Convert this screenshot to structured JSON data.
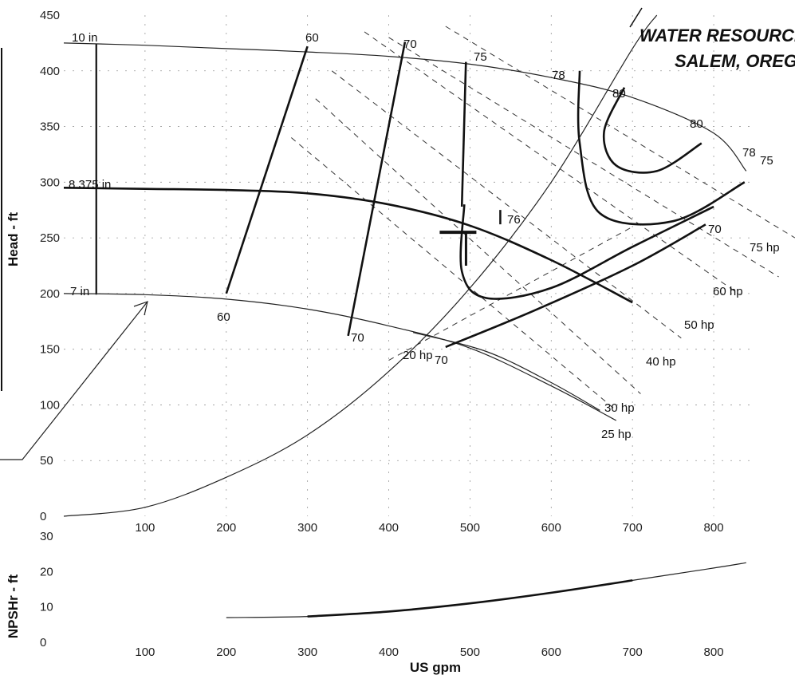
{
  "stamp": {
    "line1": "WATER RESOURCE",
    "line2": "SALEM, OREG"
  },
  "chart_data": [
    {
      "type": "line",
      "title": "",
      "xlabel": "",
      "ylabel": "Head - ft",
      "xlim": [
        0,
        850
      ],
      "ylim": [
        0,
        450
      ],
      "x_ticks": [
        "100",
        "200",
        "300",
        "400",
        "500",
        "600",
        "700",
        "800"
      ],
      "y_ticks": [
        "0",
        "50",
        "100",
        "150",
        "200",
        "250",
        "300",
        "350",
        "400",
        "450"
      ],
      "impeller_curves": [
        {
          "name": "10 in",
          "points": [
            [
              0,
              425
            ],
            [
              100,
              423
            ],
            [
              200,
              420
            ],
            [
              300,
              417
            ],
            [
              400,
              413
            ],
            [
              500,
              406
            ],
            [
              600,
              394
            ],
            [
              700,
              376
            ],
            [
              800,
              344
            ],
            [
              840,
              310
            ]
          ]
        },
        {
          "name": "8.375 in",
          "points": [
            [
              0,
              295
            ],
            [
              100,
              294
            ],
            [
              200,
              293
            ],
            [
              300,
              290
            ],
            [
              400,
              280
            ],
            [
              500,
              261
            ],
            [
              600,
              230
            ],
            [
              700,
              192
            ]
          ]
        },
        {
          "name": "7 in",
          "points": [
            [
              0,
              200
            ],
            [
              100,
              199
            ],
            [
              200,
              195
            ],
            [
              300,
              186
            ],
            [
              400,
              171
            ],
            [
              500,
              151
            ],
            [
              600,
              117
            ],
            [
              680,
              86
            ]
          ]
        }
      ],
      "efficiency_lines": [
        {
          "label": "60",
          "points": [
            [
              200,
              200
            ],
            [
              300,
              422
            ]
          ]
        },
        {
          "label": "70",
          "points": [
            [
              350,
              162
            ],
            [
              420,
              426
            ]
          ]
        },
        {
          "label": "75",
          "points": [
            [
              490,
              278
            ],
            [
              495,
              408
            ]
          ]
        }
      ],
      "efficiency_contours": [
        {
          "label": "76",
          "points": [
            [
              800,
              278
            ],
            [
              700,
              242
            ],
            [
              600,
              205
            ],
            [
              520,
              196
            ],
            [
              490,
              220
            ],
            [
              493,
              280
            ]
          ]
        },
        {
          "label": "78",
          "points": [
            [
              838,
              300
            ],
            [
              750,
              265
            ],
            [
              660,
              272
            ],
            [
              635,
              335
            ],
            [
              635,
              400
            ]
          ]
        },
        {
          "label": "80",
          "points": [
            [
              785,
              335
            ],
            [
              730,
              310
            ],
            [
              680,
              315
            ],
            [
              665,
              345
            ],
            [
              690,
              385
            ]
          ]
        }
      ],
      "power_lines": [
        {
          "label": "20 hp",
          "points": [
            [
              400,
              140
            ],
            [
              700,
              260
            ]
          ]
        },
        {
          "label": "25 hp",
          "points": [
            [
              280,
              340
            ],
            [
              680,
              95
            ]
          ]
        },
        {
          "label": "30 hp",
          "points": [
            [
              310,
              375
            ],
            [
              710,
              110
            ]
          ]
        },
        {
          "label": "40 hp",
          "points": [
            [
              330,
              400
            ],
            [
              760,
              160
            ]
          ]
        },
        {
          "label": "50 hp",
          "points": [
            [
              370,
              435
            ],
            [
              830,
              200
            ]
          ]
        },
        {
          "label": "60 hp",
          "points": [
            [
              400,
              430
            ],
            [
              880,
              215
            ]
          ]
        },
        {
          "label": "75 hp",
          "points": [
            [
              470,
              440
            ],
            [
              900,
              250
            ]
          ]
        }
      ],
      "efficiency_labels": [
        "60",
        "60",
        "70",
        "70",
        "70",
        "75",
        "76",
        "78",
        "78",
        "75",
        "80",
        "80",
        "76",
        "70"
      ],
      "system_curve": [
        [
          0,
          0
        ],
        [
          100,
          8
        ],
        [
          200,
          35
        ],
        [
          300,
          73
        ],
        [
          400,
          130
        ],
        [
          500,
          205
        ],
        [
          600,
          300
        ],
        [
          700,
          420
        ],
        [
          730,
          450
        ]
      ],
      "operating_point": {
        "x": 500,
        "y": 255
      }
    },
    {
      "type": "line",
      "title": "",
      "xlabel": "US gpm",
      "ylabel": "NPSHr - ft",
      "xlim": [
        0,
        850
      ],
      "ylim": [
        0,
        30
      ],
      "x_ticks": [
        "100",
        "200",
        "300",
        "400",
        "500",
        "600",
        "700",
        "800"
      ],
      "y_ticks": [
        "0",
        "10",
        "20",
        "30"
      ],
      "series": [
        {
          "points": [
            [
              200,
              7
            ],
            [
              300,
              7.3
            ],
            [
              400,
              8.7
            ],
            [
              500,
              11
            ],
            [
              600,
              14
            ],
            [
              700,
              17.5
            ],
            [
              800,
              21
            ],
            [
              840,
              22.5
            ]
          ]
        }
      ]
    }
  ]
}
